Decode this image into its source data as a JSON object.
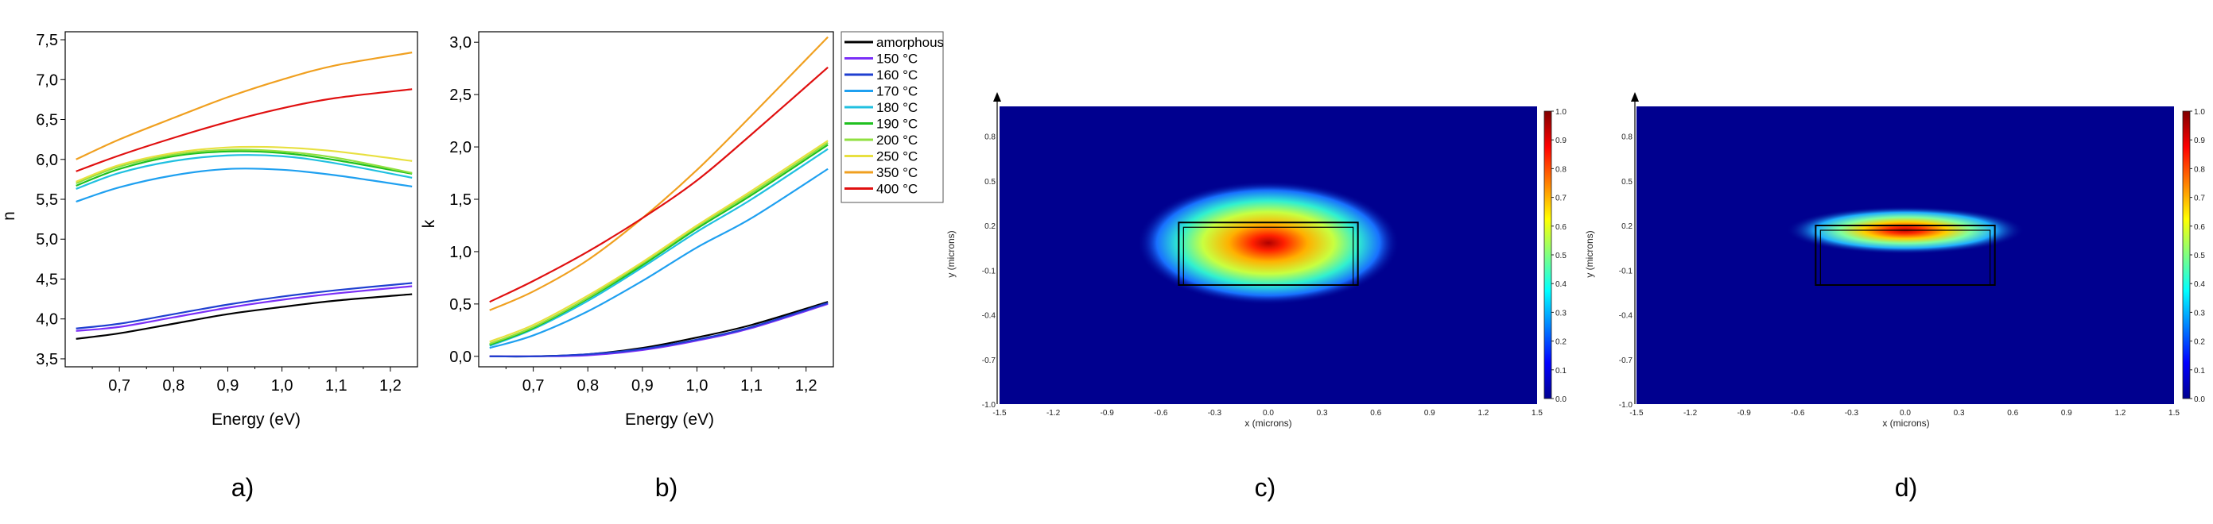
{
  "legend": [
    {
      "name": "amorphous",
      "color": "#000000"
    },
    {
      "name": "150 °C",
      "color": "#7b2ff7"
    },
    {
      "name": "160 °C",
      "color": "#1f3fd0"
    },
    {
      "name": "170 °C",
      "color": "#1fa0f0"
    },
    {
      "name": "180 °C",
      "color": "#20c0e0"
    },
    {
      "name": "190 °C",
      "color": "#20c020"
    },
    {
      "name": "200 °C",
      "color": "#90e040"
    },
    {
      "name": "250 °C",
      "color": "#e8e040"
    },
    {
      "name": "350 °C",
      "color": "#f0a020"
    },
    {
      "name": "400 °C",
      "color": "#e01010"
    }
  ],
  "chart_data": [
    {
      "type": "line",
      "panel": "a)",
      "xlabel": "Energy (eV)",
      "ylabel": "n",
      "xlim": [
        0.6,
        1.25
      ],
      "ylim": [
        3.4,
        7.6
      ],
      "xticks": [
        "0,7",
        "0,8",
        "0,9",
        "1,0",
        "1,1",
        "1,2"
      ],
      "yticks": [
        "3,5",
        "4,0",
        "4,5",
        "5,0",
        "5,5",
        "6,0",
        "6,5",
        "7,0",
        "7,5"
      ],
      "x": [
        0.62,
        0.7,
        0.8,
        0.9,
        1.0,
        1.1,
        1.24
      ],
      "series": [
        {
          "name": "amorphous",
          "values": [
            3.75,
            3.82,
            3.94,
            4.06,
            4.15,
            4.23,
            4.31
          ]
        },
        {
          "name": "150 °C",
          "values": [
            3.85,
            3.9,
            4.02,
            4.14,
            4.24,
            4.32,
            4.41
          ]
        },
        {
          "name": "160 °C",
          "values": [
            3.88,
            3.94,
            4.06,
            4.18,
            4.28,
            4.36,
            4.45
          ]
        },
        {
          "name": "170 °C",
          "values": [
            5.47,
            5.65,
            5.8,
            5.88,
            5.87,
            5.8,
            5.66
          ]
        },
        {
          "name": "180 °C",
          "values": [
            5.63,
            5.83,
            5.98,
            6.05,
            6.04,
            5.95,
            5.77
          ]
        },
        {
          "name": "190 °C",
          "values": [
            5.67,
            5.88,
            6.04,
            6.1,
            6.08,
            5.99,
            5.82
          ]
        },
        {
          "name": "200 °C",
          "values": [
            5.7,
            5.91,
            6.06,
            6.12,
            6.1,
            6.02,
            5.83
          ]
        },
        {
          "name": "250 °C",
          "values": [
            5.72,
            5.93,
            6.08,
            6.15,
            6.15,
            6.1,
            5.98
          ]
        },
        {
          "name": "350 °C",
          "values": [
            6.0,
            6.25,
            6.52,
            6.78,
            7.0,
            7.18,
            7.34
          ]
        },
        {
          "name": "400 °C",
          "values": [
            5.85,
            6.05,
            6.27,
            6.47,
            6.64,
            6.77,
            6.88
          ]
        }
      ]
    },
    {
      "type": "line",
      "panel": "b)",
      "xlabel": "Energy (eV)",
      "ylabel": "k",
      "xlim": [
        0.6,
        1.25
      ],
      "ylim": [
        -0.1,
        3.1
      ],
      "xticks": [
        "0,7",
        "0,8",
        "0,9",
        "1,0",
        "1,1",
        "1,2"
      ],
      "yticks": [
        "0,0",
        "0,5",
        "1,0",
        "1,5",
        "2,0",
        "2,5",
        "3,0"
      ],
      "x": [
        0.62,
        0.7,
        0.8,
        0.9,
        1.0,
        1.1,
        1.24
      ],
      "series": [
        {
          "name": "amorphous",
          "values": [
            0.0,
            0.0,
            0.02,
            0.08,
            0.18,
            0.3,
            0.52
          ]
        },
        {
          "name": "150 °C",
          "values": [
            0.0,
            0.0,
            0.01,
            0.06,
            0.15,
            0.27,
            0.5
          ]
        },
        {
          "name": "160 °C",
          "values": [
            0.0,
            0.0,
            0.02,
            0.07,
            0.16,
            0.28,
            0.51
          ]
        },
        {
          "name": "170 °C",
          "values": [
            0.08,
            0.2,
            0.43,
            0.72,
            1.04,
            1.32,
            1.79
          ]
        },
        {
          "name": "180 °C",
          "values": [
            0.1,
            0.26,
            0.53,
            0.85,
            1.19,
            1.5,
            1.98
          ]
        },
        {
          "name": "190 °C",
          "values": [
            0.11,
            0.27,
            0.55,
            0.87,
            1.22,
            1.54,
            2.02
          ]
        },
        {
          "name": "200 °C",
          "values": [
            0.12,
            0.28,
            0.56,
            0.89,
            1.24,
            1.56,
            2.04
          ]
        },
        {
          "name": "250 °C",
          "values": [
            0.14,
            0.3,
            0.58,
            0.9,
            1.25,
            1.58,
            2.06
          ]
        },
        {
          "name": "350 °C",
          "values": [
            0.44,
            0.62,
            0.92,
            1.32,
            1.78,
            2.3,
            3.05
          ]
        },
        {
          "name": "400 °C",
          "values": [
            0.52,
            0.72,
            1.0,
            1.32,
            1.68,
            2.12,
            2.76
          ]
        }
      ]
    },
    {
      "type": "heatmap",
      "panel": "c)",
      "xlabel": "x (microns)",
      "ylabel": "y (microns)",
      "xlim": [
        -1.5,
        1.5
      ],
      "ylim": [
        -1.0,
        1.0
      ],
      "xticks": [
        "-1.5",
        "-1.2",
        "-0.9",
        "-0.6",
        "-0.3",
        "0.0",
        "0.3",
        "0.6",
        "0.9",
        "1.2",
        "1.5"
      ],
      "yticks": [
        "-1.0",
        "-0.7",
        "-0.4",
        "-0.1",
        "0.2",
        "0.5",
        "0.8"
      ],
      "colorbar_ticks": [
        "0.0",
        "0.1",
        "0.2",
        "0.3",
        "0.4",
        "0.5",
        "0.6",
        "0.7",
        "0.8",
        "0.9",
        "1.0"
      ],
      "peak": {
        "x": 0.0,
        "y": 0.2
      },
      "waveguide": {
        "x": [
          -0.5,
          0.5
        ],
        "y": [
          -0.2,
          0.22
        ]
      }
    },
    {
      "type": "heatmap",
      "panel": "d)",
      "xlabel": "x (microns)",
      "ylabel": "y (microns)",
      "xlim": [
        -1.5,
        1.5
      ],
      "ylim": [
        -1.0,
        1.0
      ],
      "xticks": [
        "-1.5",
        "-1.2",
        "-0.9",
        "-0.6",
        "-0.3",
        "0.0",
        "0.3",
        "0.6",
        "0.9",
        "1.2",
        "1.5"
      ],
      "yticks": [
        "-1.0",
        "-0.7",
        "-0.4",
        "-0.1",
        "0.2",
        "0.5",
        "0.8"
      ],
      "colorbar_ticks": [
        "0.0",
        "0.1",
        "0.2",
        "0.3",
        "0.4",
        "0.5",
        "0.6",
        "0.7",
        "0.8",
        "0.9",
        "1.0"
      ],
      "peak": {
        "x": 0.0,
        "y": 0.2
      },
      "waveguide": {
        "x": [
          -0.5,
          0.5
        ],
        "y": [
          -0.2,
          0.2
        ]
      }
    }
  ],
  "panel_letters": [
    "a)",
    "b)",
    "c)",
    "d)"
  ]
}
